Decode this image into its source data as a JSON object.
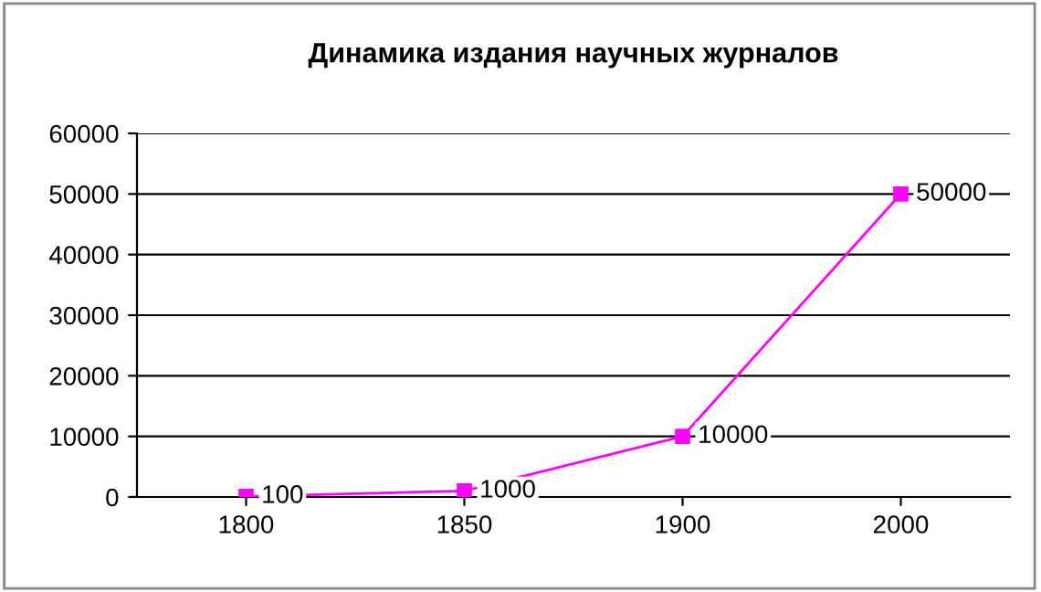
{
  "chart_data": {
    "type": "line",
    "title": "Динамика издания научных журналов",
    "categories": [
      "1800",
      "1850",
      "1900",
      "2000"
    ],
    "series": [
      {
        "color": "#ff00ff",
        "values": [
          100,
          1000,
          10000,
          50000
        ]
      }
    ],
    "ylim": [
      0,
      60000
    ],
    "yticks": [
      0,
      10000,
      20000,
      30000,
      40000,
      50000,
      60000
    ],
    "grid": "y",
    "marker": "square",
    "line_style": "solid",
    "data_labels": true,
    "legend": false
  }
}
